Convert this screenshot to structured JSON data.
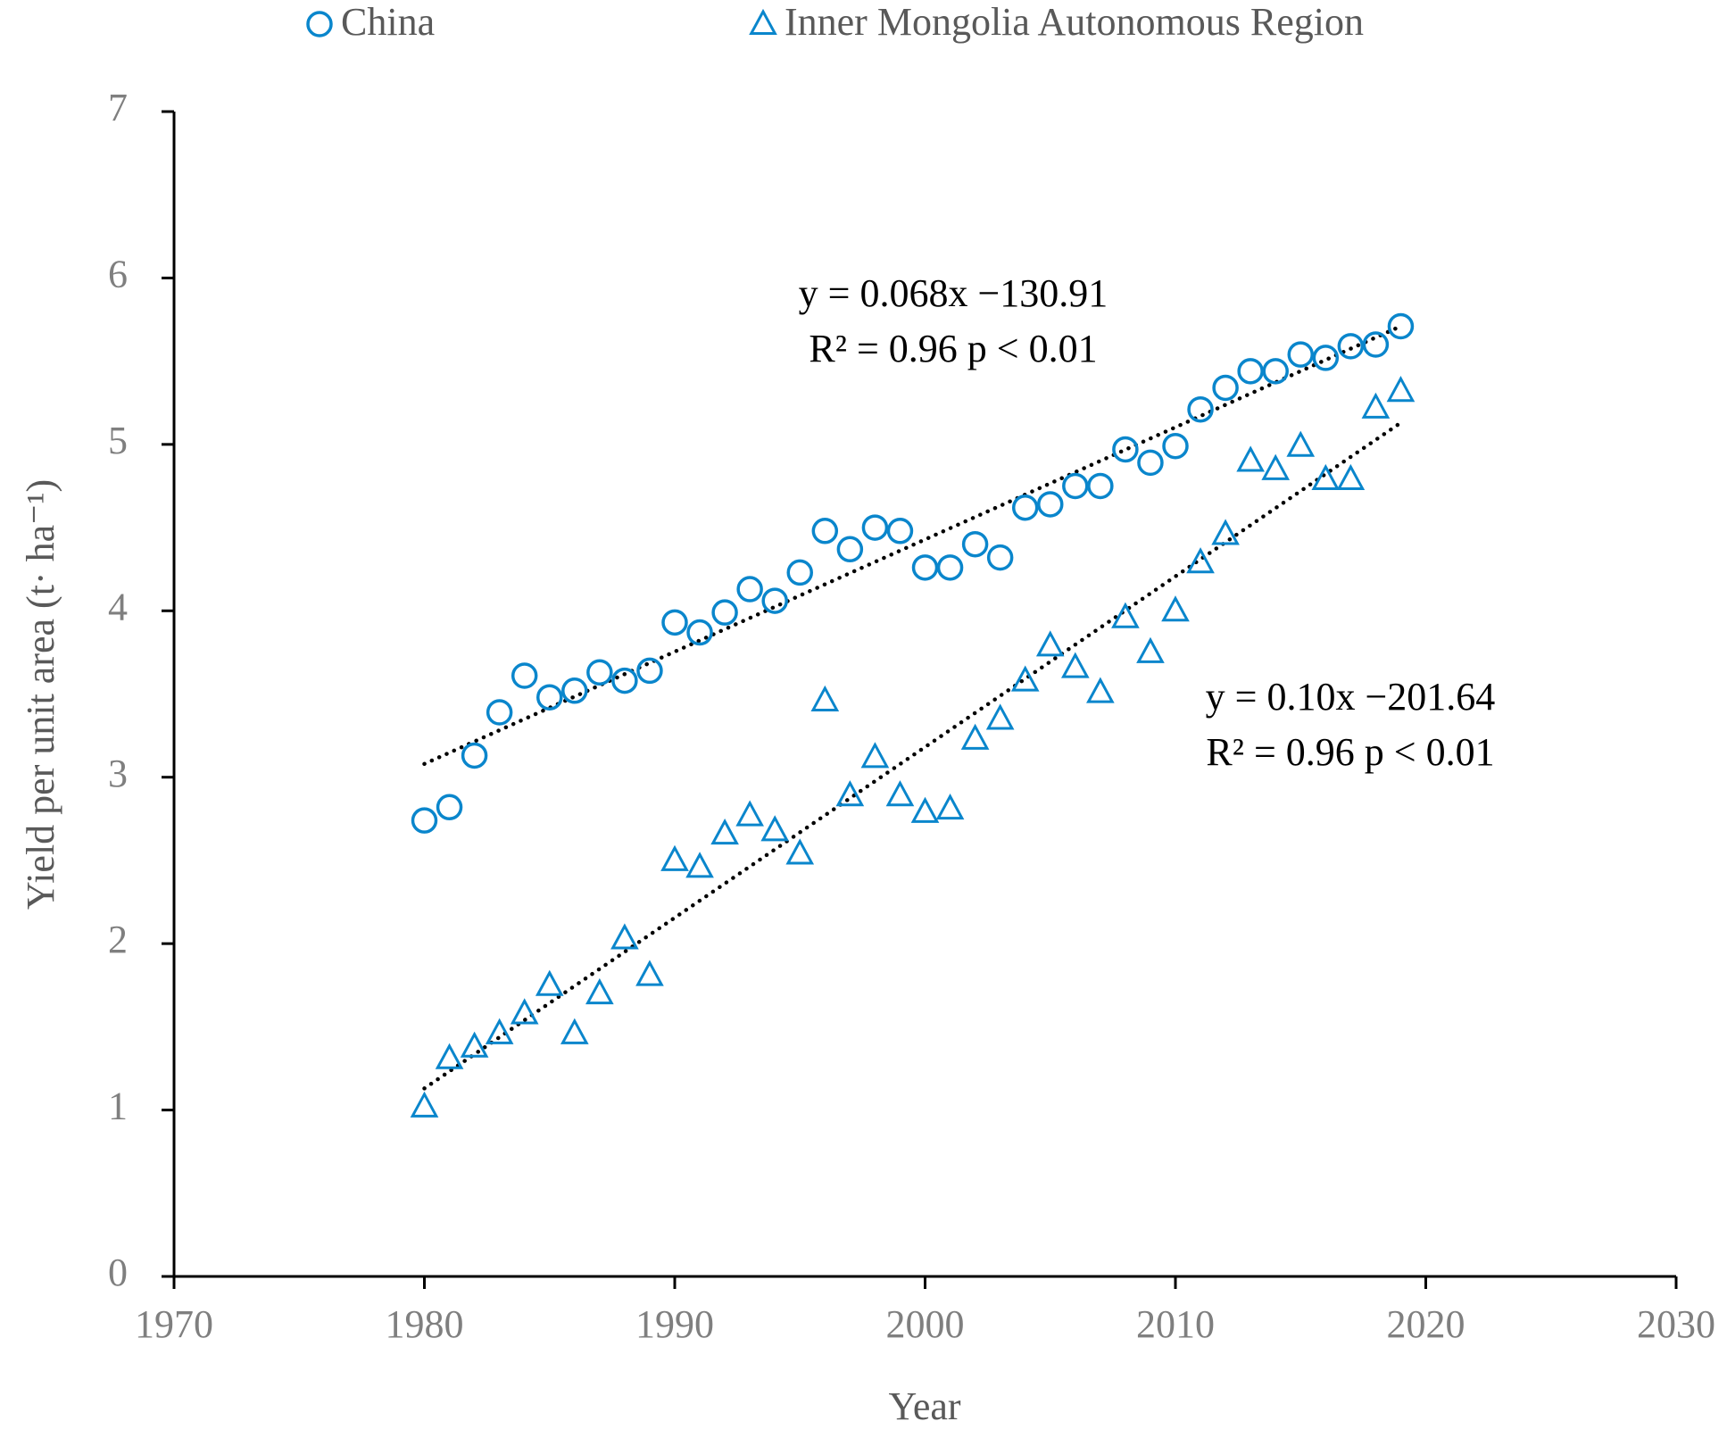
{
  "chart_data": {
    "type": "scatter",
    "xlabel": "Year",
    "ylabel": "Yield per unit area (t· ha⁻¹)",
    "xlim": [
      1970,
      2030
    ],
    "xticks": [
      1970,
      1980,
      1990,
      2000,
      2010,
      2020,
      2030
    ],
    "ylim": [
      0,
      7
    ],
    "yticks": [
      0,
      1,
      2,
      3,
      4,
      5,
      6,
      7
    ],
    "x": [
      1980,
      1981,
      1982,
      1983,
      1984,
      1985,
      1986,
      1987,
      1988,
      1989,
      1990,
      1991,
      1992,
      1993,
      1994,
      1995,
      1996,
      1997,
      1998,
      1999,
      2000,
      2001,
      2002,
      2003,
      2004,
      2005,
      2006,
      2007,
      2008,
      2009,
      2010,
      2011,
      2012,
      2013,
      2014,
      2015,
      2016,
      2017,
      2018,
      2019
    ],
    "series": [
      {
        "name": "China",
        "color": "#0a86cc",
        "marker": "circle",
        "values": [
          2.74,
          2.82,
          3.13,
          3.39,
          3.61,
          3.48,
          3.52,
          3.63,
          3.58,
          3.64,
          3.93,
          3.87,
          3.99,
          4.13,
          4.06,
          4.23,
          4.48,
          4.37,
          4.5,
          4.48,
          4.26,
          4.26,
          4.4,
          4.32,
          4.62,
          4.64,
          4.75,
          4.75,
          4.97,
          4.89,
          4.99,
          5.21,
          5.34,
          5.44,
          5.44,
          5.54,
          5.52,
          5.59,
          5.6,
          5.71
        ],
        "trend": {
          "x": [
            1980,
            2019
          ],
          "values": [
            3.08,
            5.71
          ]
        },
        "equation": [
          "y = 0.068x −130.91",
          "R² = 0.96 p < 0.01"
        ]
      },
      {
        "name": "Inner Mongolia Autonomous Region",
        "color": "#0a86cc",
        "marker": "triangle",
        "values": [
          1.02,
          1.31,
          1.38,
          1.46,
          1.58,
          1.75,
          1.46,
          1.7,
          2.03,
          1.81,
          2.5,
          2.46,
          2.66,
          2.77,
          2.68,
          2.54,
          3.46,
          2.89,
          3.12,
          2.89,
          2.79,
          2.81,
          3.23,
          3.35,
          3.58,
          3.79,
          3.66,
          3.51,
          3.96,
          3.75,
          4.0,
          4.29,
          4.46,
          4.9,
          4.85,
          4.99,
          4.79,
          4.79,
          5.22,
          5.32
        ],
        "trend": {
          "x": [
            1980,
            2019
          ],
          "values": [
            1.13,
            5.13
          ]
        },
        "equation": [
          "y = 0.10x −201.64",
          "R² = 0.96 p < 0.01"
        ]
      }
    ]
  }
}
